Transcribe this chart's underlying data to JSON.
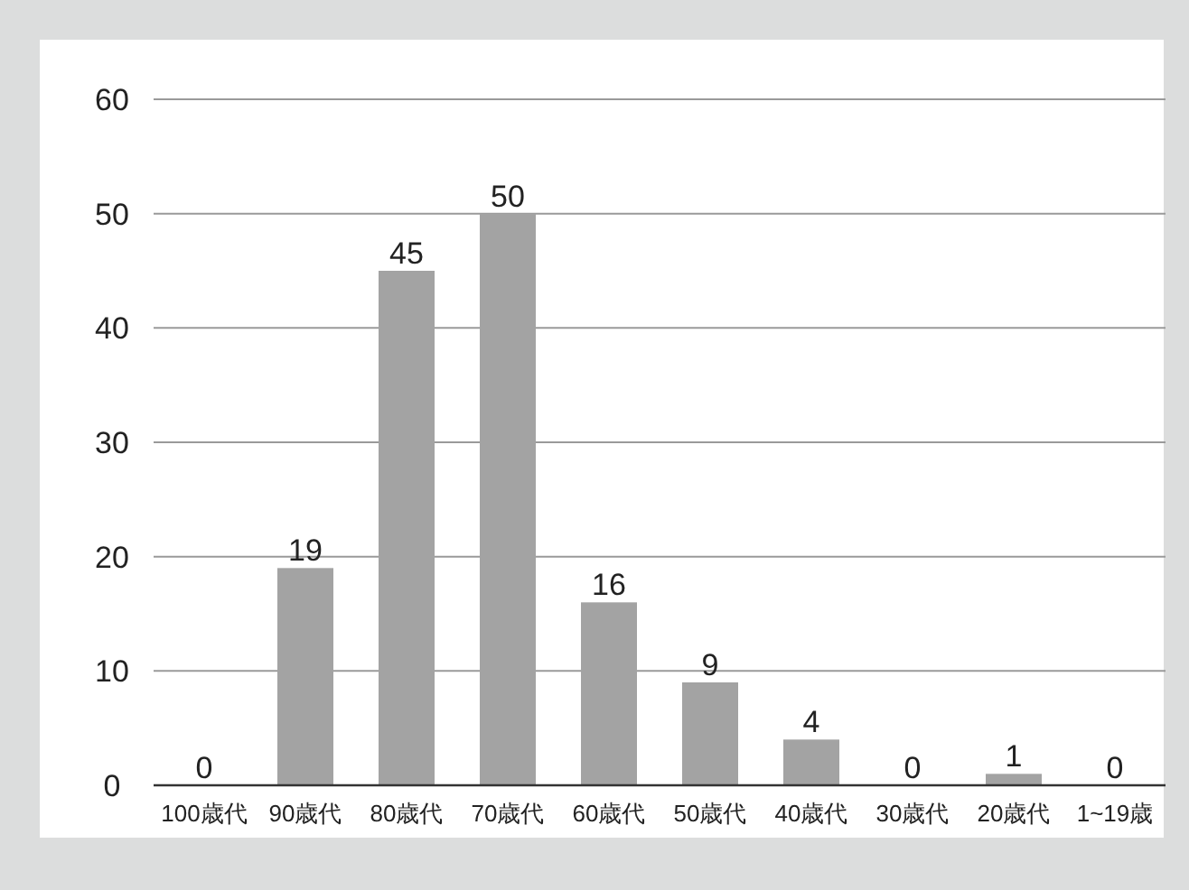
{
  "chart_data": {
    "type": "bar",
    "categories": [
      "100歳代",
      "90歳代",
      "80歳代",
      "70歳代",
      "60歳代",
      "50歳代",
      "40歳代",
      "30歳代",
      "20歳代",
      "1~19歳"
    ],
    "values": [
      0,
      19,
      45,
      50,
      16,
      9,
      4,
      0,
      1,
      0
    ],
    "color": "#a3a3a3",
    "ylim": [
      0,
      60
    ],
    "yticks": [
      0,
      10,
      20,
      30,
      40,
      50,
      60
    ],
    "grid": "y",
    "data_labels": true
  }
}
